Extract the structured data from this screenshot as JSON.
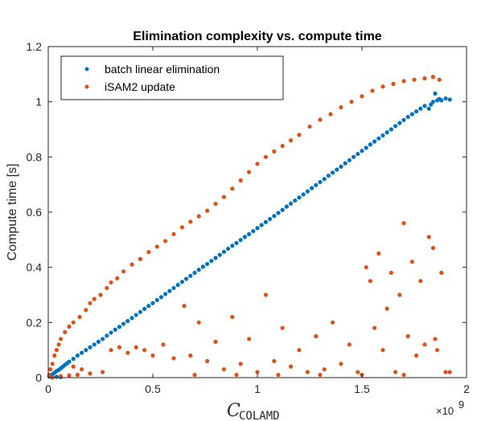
{
  "chart_data": {
    "type": "scatter",
    "title": "Elimination complexity vs. compute time",
    "xlabel_main": "C",
    "xlabel_sub": "COLAMD",
    "ylabel": "Compute time [s]",
    "x_exponent_label": "×10",
    "x_exponent_power": "9",
    "xlim": [
      0,
      2
    ],
    "ylim": [
      0,
      1.2
    ],
    "xticks": [
      0,
      0.5,
      1,
      1.5,
      2
    ],
    "xtick_labels": [
      "0",
      "0.5",
      "1",
      "1.5",
      "2"
    ],
    "yticks": [
      0,
      0.2,
      0.4,
      0.6,
      0.8,
      1,
      1.2
    ],
    "ytick_labels": [
      "0",
      "0.2",
      "0.4",
      "0.6",
      "0.8",
      "1",
      "1.2"
    ],
    "legend_position": "top-left",
    "grid": false,
    "series": [
      {
        "name": "batch linear elimination",
        "color": "#0072BD",
        "points": [
          [
            0.005,
            0.004
          ],
          [
            0.01,
            0.008
          ],
          [
            0.02,
            0.012
          ],
          [
            0.03,
            0.018
          ],
          [
            0.04,
            0.024
          ],
          [
            0.05,
            0.028
          ],
          [
            0.06,
            0.034
          ],
          [
            0.07,
            0.04
          ],
          [
            0.08,
            0.046
          ],
          [
            0.09,
            0.052
          ],
          [
            0.1,
            0.058
          ],
          [
            0.12,
            0.068
          ],
          [
            0.14,
            0.08
          ],
          [
            0.16,
            0.09
          ],
          [
            0.18,
            0.1
          ],
          [
            0.2,
            0.11
          ],
          [
            0.22,
            0.12
          ],
          [
            0.24,
            0.13
          ],
          [
            0.26,
            0.14
          ],
          [
            0.28,
            0.152
          ],
          [
            0.3,
            0.163
          ],
          [
            0.32,
            0.174
          ],
          [
            0.34,
            0.184
          ],
          [
            0.36,
            0.195
          ],
          [
            0.38,
            0.205
          ],
          [
            0.4,
            0.216
          ],
          [
            0.42,
            0.227
          ],
          [
            0.44,
            0.238
          ],
          [
            0.46,
            0.249
          ],
          [
            0.48,
            0.26
          ],
          [
            0.5,
            0.27
          ],
          [
            0.52,
            0.281
          ],
          [
            0.54,
            0.292
          ],
          [
            0.56,
            0.303
          ],
          [
            0.58,
            0.314
          ],
          [
            0.6,
            0.325
          ],
          [
            0.62,
            0.336
          ],
          [
            0.64,
            0.347
          ],
          [
            0.66,
            0.358
          ],
          [
            0.68,
            0.369
          ],
          [
            0.7,
            0.38
          ],
          [
            0.72,
            0.391
          ],
          [
            0.74,
            0.402
          ],
          [
            0.76,
            0.412
          ],
          [
            0.78,
            0.423
          ],
          [
            0.8,
            0.434
          ],
          [
            0.82,
            0.445
          ],
          [
            0.84,
            0.456
          ],
          [
            0.86,
            0.467
          ],
          [
            0.88,
            0.478
          ],
          [
            0.9,
            0.488
          ],
          [
            0.92,
            0.499
          ],
          [
            0.94,
            0.51
          ],
          [
            0.96,
            0.52
          ],
          [
            0.98,
            0.531
          ],
          [
            1.0,
            0.542
          ],
          [
            1.02,
            0.553
          ],
          [
            1.04,
            0.564
          ],
          [
            1.06,
            0.575
          ],
          [
            1.08,
            0.586
          ],
          [
            1.1,
            0.597
          ],
          [
            1.12,
            0.608
          ],
          [
            1.14,
            0.62
          ],
          [
            1.16,
            0.631
          ],
          [
            1.18,
            0.642
          ],
          [
            1.2,
            0.653
          ],
          [
            1.22,
            0.664
          ],
          [
            1.24,
            0.675
          ],
          [
            1.26,
            0.687
          ],
          [
            1.28,
            0.698
          ],
          [
            1.3,
            0.709
          ],
          [
            1.32,
            0.72
          ],
          [
            1.34,
            0.732
          ],
          [
            1.36,
            0.743
          ],
          [
            1.38,
            0.754
          ],
          [
            1.4,
            0.765
          ],
          [
            1.42,
            0.777
          ],
          [
            1.44,
            0.788
          ],
          [
            1.46,
            0.8
          ],
          [
            1.48,
            0.811
          ],
          [
            1.5,
            0.822
          ],
          [
            1.52,
            0.833
          ],
          [
            1.54,
            0.845
          ],
          [
            1.56,
            0.856
          ],
          [
            1.58,
            0.867
          ],
          [
            1.6,
            0.878
          ],
          [
            1.62,
            0.889
          ],
          [
            1.64,
            0.9
          ],
          [
            1.66,
            0.912
          ],
          [
            1.68,
            0.923
          ],
          [
            1.7,
            0.934
          ],
          [
            1.72,
            0.945
          ],
          [
            1.74,
            0.955
          ],
          [
            1.76,
            0.965
          ],
          [
            1.78,
            0.975
          ],
          [
            1.8,
            0.985
          ],
          [
            1.82,
            0.975
          ],
          [
            1.83,
            0.99
          ],
          [
            1.84,
            1.0
          ],
          [
            1.85,
            1.03
          ],
          [
            1.86,
            1.005
          ],
          [
            1.87,
            1.01
          ],
          [
            1.88,
            1.005
          ],
          [
            1.9,
            1.012
          ],
          [
            1.92,
            1.008
          ],
          [
            0.02,
            0.002
          ],
          [
            0.04,
            0.003
          ],
          [
            0.06,
            0.002
          ]
        ]
      },
      {
        "name": "iSAM2 update",
        "color": "#D95319",
        "points": [
          [
            0.005,
            0.01
          ],
          [
            0.01,
            0.03
          ],
          [
            0.02,
            0.05
          ],
          [
            0.03,
            0.08
          ],
          [
            0.04,
            0.1
          ],
          [
            0.05,
            0.12
          ],
          [
            0.06,
            0.14
          ],
          [
            0.08,
            0.165
          ],
          [
            0.1,
            0.185
          ],
          [
            0.12,
            0.2
          ],
          [
            0.15,
            0.22
          ],
          [
            0.18,
            0.245
          ],
          [
            0.2,
            0.27
          ],
          [
            0.22,
            0.285
          ],
          [
            0.25,
            0.3
          ],
          [
            0.28,
            0.325
          ],
          [
            0.3,
            0.345
          ],
          [
            0.33,
            0.36
          ],
          [
            0.36,
            0.385
          ],
          [
            0.4,
            0.41
          ],
          [
            0.44,
            0.43
          ],
          [
            0.48,
            0.455
          ],
          [
            0.52,
            0.475
          ],
          [
            0.56,
            0.495
          ],
          [
            0.6,
            0.52
          ],
          [
            0.64,
            0.545
          ],
          [
            0.68,
            0.565
          ],
          [
            0.72,
            0.585
          ],
          [
            0.76,
            0.605
          ],
          [
            0.8,
            0.63
          ],
          [
            0.84,
            0.655
          ],
          [
            0.88,
            0.685
          ],
          [
            0.92,
            0.715
          ],
          [
            0.96,
            0.745
          ],
          [
            1.0,
            0.775
          ],
          [
            1.04,
            0.8
          ],
          [
            1.08,
            0.82
          ],
          [
            1.12,
            0.84
          ],
          [
            1.16,
            0.86
          ],
          [
            1.2,
            0.88
          ],
          [
            1.25,
            0.91
          ],
          [
            1.3,
            0.935
          ],
          [
            1.35,
            0.955
          ],
          [
            1.4,
            0.98
          ],
          [
            1.45,
            1.0
          ],
          [
            1.5,
            1.02
          ],
          [
            1.55,
            1.04
          ],
          [
            1.6,
            1.055
          ],
          [
            1.65,
            1.065
          ],
          [
            1.7,
            1.075
          ],
          [
            1.75,
            1.08
          ],
          [
            1.8,
            1.085
          ],
          [
            1.84,
            1.09
          ],
          [
            1.87,
            1.08
          ],
          [
            0.02,
            0.0
          ],
          [
            0.06,
            0.005
          ],
          [
            0.1,
            0.008
          ],
          [
            0.14,
            0.01
          ],
          [
            0.2,
            0.015
          ],
          [
            0.26,
            0.02
          ],
          [
            0.3,
            0.1
          ],
          [
            0.34,
            0.11
          ],
          [
            0.38,
            0.09
          ],
          [
            0.42,
            0.11
          ],
          [
            0.46,
            0.1
          ],
          [
            0.5,
            0.08
          ],
          [
            0.55,
            0.12
          ],
          [
            0.6,
            0.07
          ],
          [
            0.65,
            0.26
          ],
          [
            0.68,
            0.08
          ],
          [
            0.72,
            0.2
          ],
          [
            0.76,
            0.06
          ],
          [
            0.8,
            0.13
          ],
          [
            0.84,
            0.03
          ],
          [
            0.88,
            0.22
          ],
          [
            0.92,
            0.05
          ],
          [
            0.96,
            0.14
          ],
          [
            1.0,
            0.02
          ],
          [
            1.04,
            0.3
          ],
          [
            1.08,
            0.06
          ],
          [
            1.12,
            0.18
          ],
          [
            1.16,
            0.04
          ],
          [
            1.2,
            0.1
          ],
          [
            1.24,
            0.02
          ],
          [
            1.28,
            0.15
          ],
          [
            1.32,
            0.03
          ],
          [
            1.36,
            0.2
          ],
          [
            1.4,
            0.05
          ],
          [
            1.44,
            0.12
          ],
          [
            1.48,
            0.02
          ],
          [
            1.52,
            0.4
          ],
          [
            1.54,
            0.35
          ],
          [
            1.56,
            0.18
          ],
          [
            1.58,
            0.45
          ],
          [
            1.6,
            0.1
          ],
          [
            1.62,
            0.25
          ],
          [
            1.64,
            0.38
          ],
          [
            1.66,
            0.02
          ],
          [
            1.68,
            0.3
          ],
          [
            1.7,
            0.56
          ],
          [
            1.72,
            0.15
          ],
          [
            1.74,
            0.42
          ],
          [
            1.76,
            0.08
          ],
          [
            1.78,
            0.35
          ],
          [
            1.8,
            0.12
          ],
          [
            1.82,
            0.51
          ],
          [
            1.84,
            0.47
          ],
          [
            1.85,
            0.14
          ],
          [
            1.86,
            0.1
          ],
          [
            1.88,
            0.38
          ],
          [
            1.9,
            0.02
          ],
          [
            1.92,
            0.02
          ],
          [
            0.7,
            0.01
          ],
          [
            0.9,
            0.01
          ],
          [
            1.1,
            0.01
          ],
          [
            1.3,
            0.01
          ],
          [
            1.5,
            0.01
          ],
          [
            1.7,
            0.01
          ],
          [
            0.12,
            0.04
          ],
          [
            0.16,
            0.03
          ]
        ]
      }
    ]
  }
}
